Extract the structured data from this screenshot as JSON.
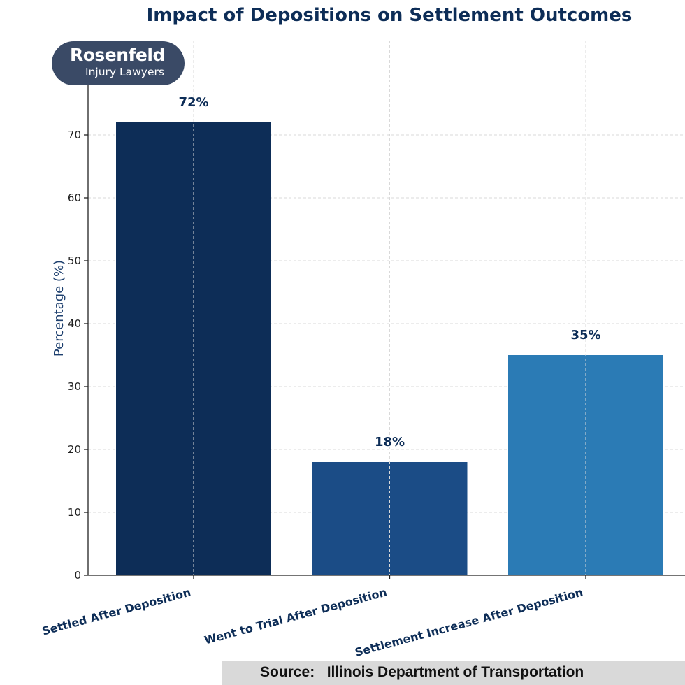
{
  "chart_data": {
    "type": "bar",
    "title": "Impact of Depositions on Settlement Outcomes",
    "xlabel": "",
    "ylabel": "Percentage (%)",
    "categories": [
      "Settled After Deposition",
      "Went to Trial After Deposition",
      "Settlement Increase After Deposition"
    ],
    "values": [
      72,
      18,
      35
    ],
    "data_labels": [
      "72%",
      "18%",
      "35%"
    ],
    "colors": [
      "#0d2d57",
      "#1b4c86",
      "#2b7bb5"
    ],
    "ylim": [
      0,
      80
    ],
    "yticks": [
      0,
      10,
      20,
      30,
      40,
      50,
      60,
      70
    ],
    "grid": true
  },
  "logo": {
    "name": "Rosenfeld",
    "subtitle": "Injury Lawyers"
  },
  "source": {
    "text": "Source:   Illinois Department of Transportation"
  }
}
